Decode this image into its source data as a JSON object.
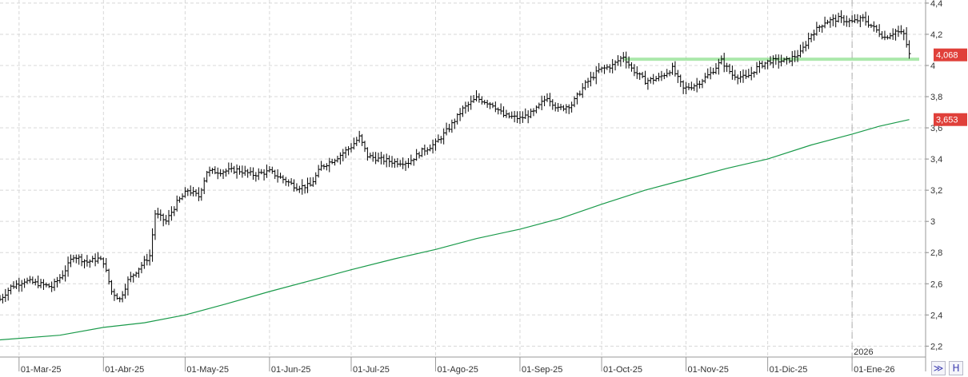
{
  "chart_data": {
    "type": "bar",
    "subtype": "ohlc",
    "y_ticks": [
      "4,4",
      "4,2",
      "4",
      "3,8",
      "3,6",
      "3,4",
      "3,2",
      "3",
      "2,8",
      "2,6",
      "2,4",
      "2,2"
    ],
    "y_tick_values": [
      4.4,
      4.2,
      4.0,
      3.8,
      3.6,
      3.4,
      3.2,
      3.0,
      2.8,
      2.6,
      2.4,
      2.2
    ],
    "ylim": [
      2.13,
      4.42
    ],
    "x_ticks": [
      "01-Mar-25",
      "01-Abr-25",
      "01-May-25",
      "01-Jun-25",
      "01-Jul-25",
      "01-Ago-25",
      "01-Sep-25",
      "01-Oct-25",
      "01-Nov-25",
      "01-Dic-25",
      "01-Ene-26"
    ],
    "x_tick_days": [
      0,
      31,
      61,
      92,
      122,
      153,
      184,
      214,
      245,
      275,
      306
    ],
    "xlim_days": [
      -7,
      333
    ],
    "year_label": "2026",
    "year_day": 306,
    "last_price_label": "4,068",
    "last_price": 4.068,
    "ma_label": "3,653",
    "ma_value": 3.653,
    "support_level": 4.04,
    "support_from_day": 222,
    "grid": true,
    "price_points": [
      [
        -7,
        2.5
      ],
      [
        -3,
        2.58
      ],
      [
        2,
        2.62
      ],
      [
        7,
        2.6
      ],
      [
        12,
        2.58
      ],
      [
        16,
        2.66
      ],
      [
        20,
        2.78
      ],
      [
        25,
        2.74
      ],
      [
        29,
        2.76
      ],
      [
        31,
        2.74
      ],
      [
        34,
        2.55
      ],
      [
        37,
        2.5
      ],
      [
        40,
        2.62
      ],
      [
        44,
        2.7
      ],
      [
        48,
        2.78
      ],
      [
        50,
        3.05
      ],
      [
        54,
        3.0
      ],
      [
        58,
        3.12
      ],
      [
        62,
        3.2
      ],
      [
        66,
        3.16
      ],
      [
        69,
        3.32
      ],
      [
        74,
        3.32
      ],
      [
        80,
        3.33
      ],
      [
        86,
        3.3
      ],
      [
        92,
        3.32
      ],
      [
        97,
        3.27
      ],
      [
        102,
        3.22
      ],
      [
        107,
        3.23
      ],
      [
        111,
        3.35
      ],
      [
        116,
        3.4
      ],
      [
        122,
        3.48
      ],
      [
        125,
        3.54
      ],
      [
        128,
        3.42
      ],
      [
        132,
        3.4
      ],
      [
        138,
        3.38
      ],
      [
        143,
        3.38
      ],
      [
        148,
        3.45
      ],
      [
        153,
        3.5
      ],
      [
        158,
        3.6
      ],
      [
        163,
        3.72
      ],
      [
        168,
        3.79
      ],
      [
        174,
        3.75
      ],
      [
        178,
        3.68
      ],
      [
        184,
        3.66
      ],
      [
        189,
        3.7
      ],
      [
        194,
        3.8
      ],
      [
        198,
        3.72
      ],
      [
        203,
        3.75
      ],
      [
        208,
        3.88
      ],
      [
        213,
        3.97
      ],
      [
        218,
        4.0
      ],
      [
        222,
        4.06
      ],
      [
        225,
        3.98
      ],
      [
        230,
        3.9
      ],
      [
        235,
        3.92
      ],
      [
        240,
        3.98
      ],
      [
        244,
        3.85
      ],
      [
        249,
        3.88
      ],
      [
        254,
        3.95
      ],
      [
        258,
        4.03
      ],
      [
        262,
        3.94
      ],
      [
        267,
        3.92
      ],
      [
        272,
        4.0
      ],
      [
        276,
        4.03
      ],
      [
        282,
        4.03
      ],
      [
        287,
        4.08
      ],
      [
        291,
        4.2
      ],
      [
        296,
        4.28
      ],
      [
        301,
        4.3
      ],
      [
        306,
        4.28
      ],
      [
        310,
        4.3
      ],
      [
        314,
        4.24
      ],
      [
        318,
        4.18
      ],
      [
        322,
        4.22
      ],
      [
        325,
        4.2
      ],
      [
        327,
        4.07
      ]
    ],
    "ma_points": [
      [
        -7,
        2.24
      ],
      [
        15,
        2.27
      ],
      [
        31,
        2.32
      ],
      [
        46,
        2.35
      ],
      [
        61,
        2.4
      ],
      [
        76,
        2.47
      ],
      [
        92,
        2.55
      ],
      [
        107,
        2.62
      ],
      [
        122,
        2.69
      ],
      [
        138,
        2.76
      ],
      [
        153,
        2.82
      ],
      [
        168,
        2.89
      ],
      [
        184,
        2.95
      ],
      [
        199,
        3.02
      ],
      [
        214,
        3.11
      ],
      [
        230,
        3.2
      ],
      [
        245,
        3.27
      ],
      [
        260,
        3.34
      ],
      [
        275,
        3.4
      ],
      [
        291,
        3.49
      ],
      [
        306,
        3.56
      ],
      [
        316,
        3.61
      ],
      [
        327,
        3.653
      ]
    ],
    "colors": {
      "price": "#000000",
      "moving_average": "#1a9a4a",
      "support": "#8fe08f",
      "tag": "#e0403a",
      "grid": "#d8d8d8"
    }
  },
  "toolbar": {
    "expand_icon": "double-chevron-icon",
    "save_icon": "floppy-disk-icon",
    "expand_glyph": "≫",
    "save_glyph": "H"
  }
}
